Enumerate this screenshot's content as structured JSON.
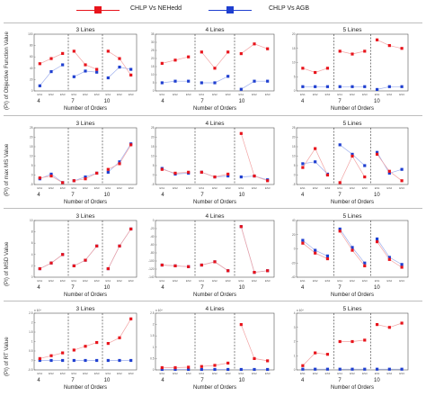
{
  "legend": {
    "red_label": "CHLP Vs NEHedd",
    "blue_label": "CHLP Vs AGB",
    "red_color": "#e8141c",
    "blue_color": "#1f3fd0",
    "red_line": "#f2a3a3",
    "blue_line": "#9fb0ee"
  },
  "rows": [
    {
      "ylabel": "(PI) of Objective Function Value"
    },
    {
      "ylabel": "(PI) of  max MS Value"
    },
    {
      "ylabel": "(PI) of  MSD Value"
    },
    {
      "ylabel": "(PI) of  RT Value"
    }
  ],
  "columns": [
    {
      "title": "3 Lines"
    },
    {
      "title": "4 Lines"
    },
    {
      "title": "5 Lines"
    }
  ],
  "common": {
    "xlabel": "Number of Orders",
    "groups": [
      "4",
      "7",
      "10"
    ],
    "tick_labels": [
      "ES1",
      "ES2",
      "ES3",
      "ES1",
      "ES2",
      "ES3",
      "ES1",
      "ES2",
      "ES3"
    ],
    "exponent": "x 10⁴"
  },
  "chart_data": [
    {
      "type": "line",
      "row": 0,
      "col": 0,
      "title": "3 Lines",
      "xlabel": "Number of Orders",
      "ylabel": "(PI) of Objective Function Value",
      "ylim": [
        0,
        100
      ],
      "yticks": [
        0,
        20,
        40,
        60,
        80,
        100
      ],
      "grid": false,
      "series": [
        {
          "name": "CHLP Vs NEHedd",
          "values": [
            48,
            57,
            66,
            70,
            46,
            38,
            70,
            57,
            28
          ]
        },
        {
          "name": "CHLP Vs AGB",
          "values": [
            9,
            34,
            46,
            25,
            35,
            33,
            23,
            42,
            38
          ]
        }
      ]
    },
    {
      "type": "line",
      "row": 0,
      "col": 1,
      "title": "4 Lines",
      "xlabel": "Number of Orders",
      "ylabel": "",
      "ylim": [
        0,
        35
      ],
      "yticks": [
        0,
        5,
        10,
        15,
        20,
        25,
        30,
        35
      ],
      "grid": false,
      "series": [
        {
          "name": "CHLP Vs NEHedd",
          "values": [
            17,
            19,
            21,
            24,
            14,
            24,
            23,
            29,
            26
          ]
        },
        {
          "name": "CHLP Vs AGB",
          "values": [
            5,
            6,
            6,
            5,
            5,
            9,
            1,
            6,
            6
          ]
        }
      ]
    },
    {
      "type": "line",
      "row": 0,
      "col": 2,
      "title": "5 Lines",
      "xlabel": "Number of Orders",
      "ylabel": "",
      "ylim": [
        0,
        20
      ],
      "yticks": [
        0,
        5,
        10,
        15,
        20
      ],
      "grid": false,
      "series": [
        {
          "name": "CHLP Vs NEHedd",
          "values": [
            8,
            6.5,
            8,
            14,
            13,
            14,
            18,
            16,
            15
          ]
        },
        {
          "name": "CHLP Vs AGB",
          "values": [
            1.5,
            1.5,
            1.5,
            1.5,
            1.5,
            1.5,
            0.5,
            1.5,
            1.5
          ]
        }
      ]
    },
    {
      "type": "line",
      "row": 1,
      "col": 0,
      "title": "3 Lines",
      "xlabel": "Number of Orders",
      "ylabel": "(PI) of  max MS Value",
      "ylim": [
        -5,
        25
      ],
      "yticks": [
        -5,
        0,
        5,
        10,
        15,
        20,
        25
      ],
      "grid": false,
      "series": [
        {
          "name": "CHLP Vs NEHedd",
          "values": [
            -1.5,
            -0.5,
            -4,
            -3,
            -2,
            1,
            3,
            6,
            16
          ]
        },
        {
          "name": "CHLP Vs AGB",
          "values": [
            -2,
            0.5,
            -4,
            -3,
            -1,
            1,
            1.5,
            7,
            16.5
          ]
        }
      ]
    },
    {
      "type": "line",
      "row": 1,
      "col": 1,
      "title": "4 Lines",
      "xlabel": "Number of Orders",
      "ylabel": "",
      "ylim": [
        -5,
        25
      ],
      "yticks": [
        -5,
        0,
        5,
        10,
        15,
        20,
        25
      ],
      "grid": false,
      "series": [
        {
          "name": "CHLP Vs NEHedd",
          "values": [
            3,
            1,
            1.5,
            1.5,
            -1,
            0.5,
            22,
            -0.5,
            -3
          ]
        },
        {
          "name": "CHLP Vs AGB",
          "values": [
            3.5,
            0.5,
            1,
            1.5,
            -1,
            -0.5,
            -1,
            -0.5,
            -2.5
          ]
        }
      ]
    },
    {
      "type": "line",
      "row": 1,
      "col": 2,
      "title": "5 Lines",
      "xlabel": "Number of Orders",
      "ylabel": "",
      "ylim": [
        -5,
        25
      ],
      "yticks": [
        -5,
        0,
        5,
        10,
        15,
        20,
        25
      ],
      "grid": false,
      "series": [
        {
          "name": "CHLP Vs NEHedd",
          "values": [
            4,
            14,
            0,
            -4,
            10,
            -1,
            11,
            2,
            -3
          ]
        },
        {
          "name": "CHLP Vs AGB",
          "values": [
            6,
            7,
            0.5,
            16,
            11,
            5,
            12,
            1,
            3
          ]
        }
      ]
    },
    {
      "type": "line",
      "row": 2,
      "col": 0,
      "title": "3 Lines",
      "xlabel": "Number of Orders",
      "ylabel": "(PI) of  MSD Value",
      "ylim": [
        0,
        10
      ],
      "yticks": [
        0,
        2,
        4,
        6,
        8,
        10
      ],
      "grid": false,
      "series": [
        {
          "name": "CHLP Vs NEHedd",
          "values": [
            1.5,
            2.5,
            4,
            2,
            3,
            5.5,
            1.5,
            5.5,
            8.5
          ]
        },
        {
          "name": "CHLP Vs AGB",
          "values": [
            1.5,
            2.5,
            4,
            2,
            3,
            5.5,
            1.5,
            5.5,
            8.5
          ]
        }
      ]
    },
    {
      "type": "line",
      "row": 2,
      "col": 1,
      "title": "4 Lines",
      "xlabel": "Number of Orders",
      "ylabel": "",
      "ylim": [
        -140,
        0
      ],
      "yticks": [
        -140,
        -120,
        -100,
        -80,
        -60,
        -40,
        -20,
        0
      ],
      "grid": false,
      "series": [
        {
          "name": "CHLP Vs NEHedd",
          "values": [
            -110,
            -112,
            -114,
            -110,
            -102,
            -124,
            -15,
            -128,
            -124
          ]
        },
        {
          "name": "CHLP Vs AGB",
          "values": [
            -110,
            -112,
            -114,
            -110,
            -102,
            -124,
            -15,
            -128,
            -124
          ]
        }
      ]
    },
    {
      "type": "line",
      "row": 2,
      "col": 2,
      "title": "5 Lines",
      "xlabel": "Number of Orders",
      "ylabel": "",
      "ylim": [
        -40,
        40
      ],
      "yticks": [
        -40,
        -20,
        0,
        20,
        40
      ],
      "grid": false,
      "series": [
        {
          "name": "CHLP Vs NEHedd",
          "values": [
            8,
            -6,
            -14,
            25,
            -2,
            -24,
            10,
            -15,
            -26
          ]
        },
        {
          "name": "CHLP Vs AGB",
          "values": [
            12,
            -2,
            -10,
            28,
            2,
            -20,
            14,
            -12,
            -22
          ]
        }
      ]
    },
    {
      "type": "line",
      "row": 3,
      "col": 0,
      "title": "3 Lines",
      "xlabel": "Number of Orders",
      "ylabel": "(PI) of  RT Value",
      "ylim": [
        -0.5,
        2.5
      ],
      "yticks": [
        -0.5,
        0,
        0.5,
        1,
        1.5,
        2,
        2.5
      ],
      "grid": false,
      "series": [
        {
          "name": "CHLP Vs NEHedd",
          "values": [
            0.1,
            0.25,
            0.4,
            0.55,
            0.75,
            0.95,
            0.9,
            1.2,
            2.2
          ]
        },
        {
          "name": "CHLP Vs AGB",
          "values": [
            0,
            0,
            0,
            0,
            0,
            0,
            0,
            0,
            0
          ]
        }
      ]
    },
    {
      "type": "line",
      "row": 3,
      "col": 1,
      "title": "4 Lines",
      "xlabel": "Number of Orders",
      "ylabel": "",
      "ylim": [
        0,
        2.5
      ],
      "yticks": [
        0,
        0.5,
        1,
        1.5,
        2,
        2.5
      ],
      "grid": false,
      "series": [
        {
          "name": "CHLP Vs NEHedd",
          "values": [
            0.1,
            0.1,
            0.12,
            0.15,
            0.2,
            0.3,
            2.0,
            0.5,
            0.4
          ]
        },
        {
          "name": "CHLP Vs AGB",
          "values": [
            0.02,
            0.02,
            0.02,
            0.02,
            0.02,
            0.02,
            0.02,
            0.02,
            0.02
          ]
        }
      ]
    },
    {
      "type": "line",
      "row": 3,
      "col": 2,
      "title": "5 Lines",
      "xlabel": "Number of Orders",
      "ylabel": "",
      "ylim": [
        0,
        4
      ],
      "yticks": [
        0,
        1,
        2,
        3,
        4
      ],
      "grid": false,
      "series": [
        {
          "name": "CHLP Vs NEHedd",
          "values": [
            0.3,
            1.2,
            1.1,
            2.0,
            2.0,
            2.1,
            3.2,
            3.0,
            3.3
          ]
        },
        {
          "name": "CHLP Vs AGB",
          "values": [
            0.05,
            0.05,
            0.05,
            0.05,
            0.05,
            0.05,
            0.05,
            0.05,
            0.05
          ]
        }
      ]
    }
  ]
}
